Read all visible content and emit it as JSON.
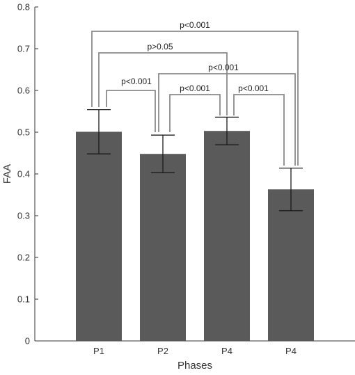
{
  "chart_data": {
    "type": "bar",
    "categories": [
      "P1",
      "P2",
      "P4",
      "P4"
    ],
    "values": [
      0.501,
      0.448,
      0.503,
      0.363
    ],
    "error": [
      0.053,
      0.045,
      0.033,
      0.051
    ],
    "xlabel": "Phases",
    "ylabel": "FAA",
    "ylim": [
      0,
      0.8
    ],
    "yticks": [
      0,
      0.1,
      0.2,
      0.3,
      0.4,
      0.5,
      0.6,
      0.7,
      0.8
    ],
    "ytick_labels": [
      "0",
      "0.1",
      "0.2",
      "0.3",
      "0.4",
      "0.5",
      "0.6",
      "0.7",
      "0.8"
    ],
    "grid": false,
    "bar_color": "#5a5a5a",
    "significance": [
      {
        "from": 0,
        "to": 3,
        "label": "p<0.001"
      },
      {
        "from": 0,
        "to": 2,
        "label": "p>0.05"
      },
      {
        "from": 1,
        "to": 3,
        "label": "p<0.001"
      },
      {
        "from": 0,
        "to": 1,
        "label": "p<0.001"
      },
      {
        "from": 1,
        "to": 2,
        "label": "p<0.001"
      },
      {
        "from": 2,
        "to": 3,
        "label": "p<0.001"
      }
    ]
  }
}
